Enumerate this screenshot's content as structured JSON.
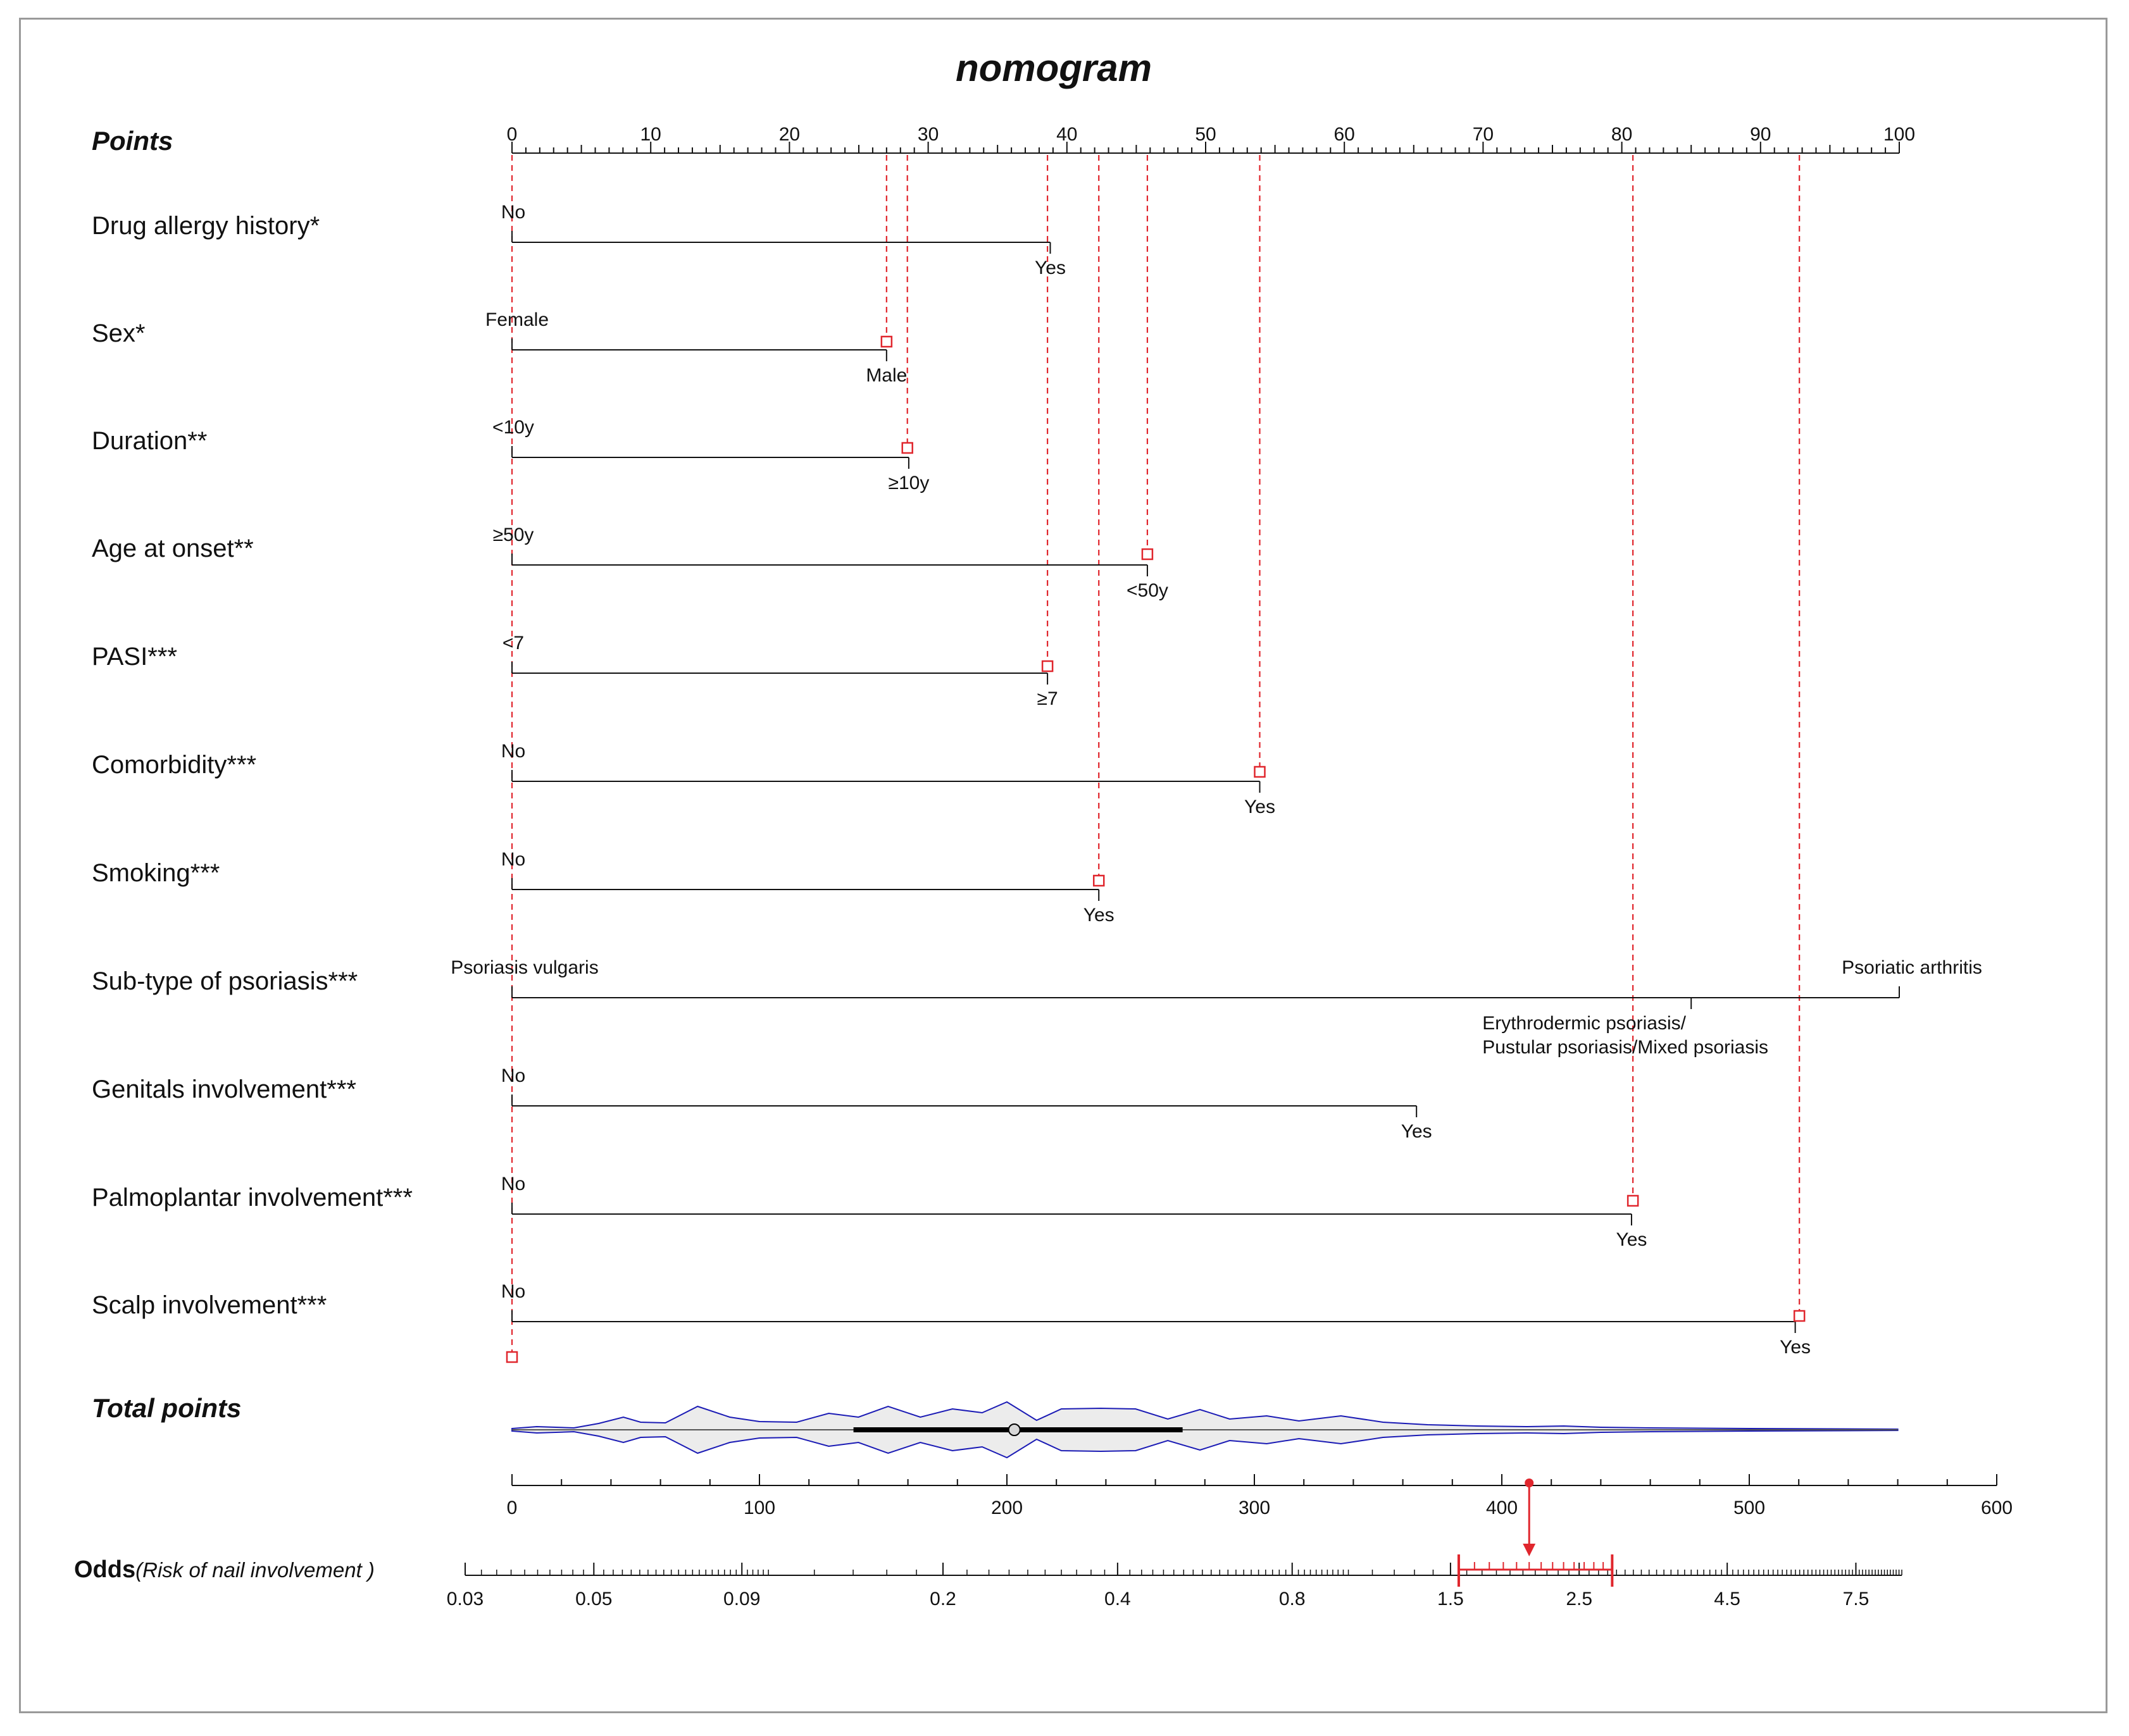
{
  "chart_data": {
    "type": "nomogram",
    "title": "nomogram",
    "points_axis": {
      "label": "Points",
      "min": 0,
      "max": 100,
      "major_step": 10,
      "minor_step": 1,
      "ticks": [
        "0",
        "10",
        "20",
        "30",
        "40",
        "50",
        "60",
        "70",
        "80",
        "90",
        "100"
      ]
    },
    "variables": [
      {
        "label": "Drug allergy history*",
        "levels": [
          {
            "name": "No",
            "points": 0
          },
          {
            "name": "Yes",
            "points": 38.8
          }
        ]
      },
      {
        "label": "Sex*",
        "levels": [
          {
            "name": "Female",
            "points": 0
          },
          {
            "name": "Male",
            "points": 27
          }
        ]
      },
      {
        "label": "Duration**",
        "levels": [
          {
            "name": "<10y",
            "points": 0
          },
          {
            "name": "≥10y",
            "points": 28.6
          }
        ]
      },
      {
        "label": "Age at onset**",
        "levels": [
          {
            "name": "≥50y",
            "points": 0
          },
          {
            "name": "<50y",
            "points": 45.8
          }
        ]
      },
      {
        "label": "PASI***",
        "levels": [
          {
            "name": "<7",
            "points": 0
          },
          {
            "name": "≥7",
            "points": 38.6
          }
        ]
      },
      {
        "label": "Comorbidity***",
        "levels": [
          {
            "name": "No",
            "points": 0
          },
          {
            "name": "Yes",
            "points": 53.9
          }
        ]
      },
      {
        "label": "Smoking***",
        "levels": [
          {
            "name": "No",
            "points": 0
          },
          {
            "name": "Yes",
            "points": 42.3
          }
        ]
      },
      {
        "label": "Sub-type of psoriasis***",
        "levels": [
          {
            "name": "Psoriasis vulgaris",
            "points": 0
          },
          {
            "name": "Erythrodermic psoriasis/",
            "name2": "Pustular psoriasis/Mixed psoriasis",
            "points": 85
          },
          {
            "name": "Psoriatic arthritis",
            "points": 100
          }
        ]
      },
      {
        "label": "Genitals involvement***",
        "levels": [
          {
            "name": "No",
            "points": 0
          },
          {
            "name": "Yes",
            "points": 65.2
          }
        ]
      },
      {
        "label": "Palmoplantar involvement***",
        "levels": [
          {
            "name": "No",
            "points": 0
          },
          {
            "name": "Yes",
            "points": 80.7
          }
        ]
      },
      {
        "label": "Scalp involvement***",
        "levels": [
          {
            "name": "No",
            "points": 0
          },
          {
            "name": "Yes",
            "points": 92.5
          }
        ]
      }
    ],
    "selected_points": [
      0,
      27,
      28.5,
      38.6,
      42.3,
      45.8,
      53.9,
      80.8,
      92.8
    ],
    "total_points": {
      "label": "Total points",
      "min": 0,
      "max": 600,
      "major_step": 100,
      "ticks": [
        "0",
        "100",
        "200",
        "300",
        "400",
        "500",
        "600"
      ],
      "distribution_range": [
        0,
        560
      ],
      "median": 203,
      "iqr": [
        138,
        271
      ],
      "selected": 410
    },
    "odds": {
      "label": "Odds",
      "sublabel": "(Risk of nail involvement  )",
      "ticks": [
        "0.03",
        "0.05",
        "0.09",
        "0.2",
        "0.4",
        "0.8",
        "1.5",
        "2.5",
        "4.5",
        "7.5"
      ],
      "tick_values": [
        0.03,
        0.05,
        0.09,
        0.2,
        0.4,
        0.8,
        1.5,
        2.5,
        4.5,
        7.5
      ],
      "estimate": 2.05,
      "ci": [
        1.55,
        2.85
      ]
    },
    "colors": {
      "axis": "#111111",
      "marker": "#e0262d",
      "violin": "#1b1bb5",
      "violin_fill": "#ececec"
    }
  }
}
